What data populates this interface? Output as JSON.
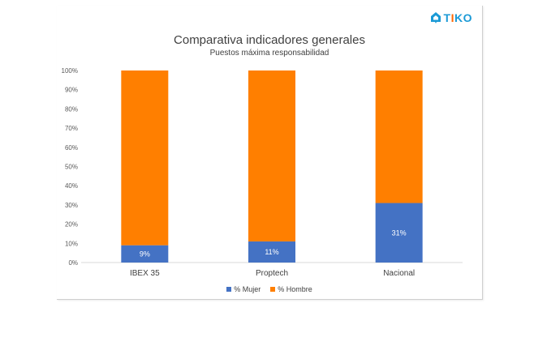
{
  "logo": {
    "text_main": "T",
    "text_i": "I",
    "text_end": "KO"
  },
  "chart_data": {
    "type": "bar",
    "stacked": true,
    "title": "Comparativa indicadores generales",
    "subtitle": "Puestos máxima responsabilidad",
    "categories": [
      "IBEX 35",
      "Proptech",
      "Nacional"
    ],
    "series": [
      {
        "name": "% Mujer",
        "values": [
          9,
          11,
          31
        ],
        "color": "#4472c4",
        "labels": [
          "9%",
          "11%",
          "31%"
        ]
      },
      {
        "name": "% Hombre",
        "values": [
          91,
          89,
          69
        ],
        "color": "#ff7f00"
      }
    ],
    "yticks": [
      "0%",
      "10%",
      "20%",
      "30%",
      "40%",
      "50%",
      "60%",
      "70%",
      "80%",
      "90%",
      "100%"
    ],
    "ylim": [
      0,
      100
    ],
    "grid": false,
    "legend": "bottom"
  }
}
